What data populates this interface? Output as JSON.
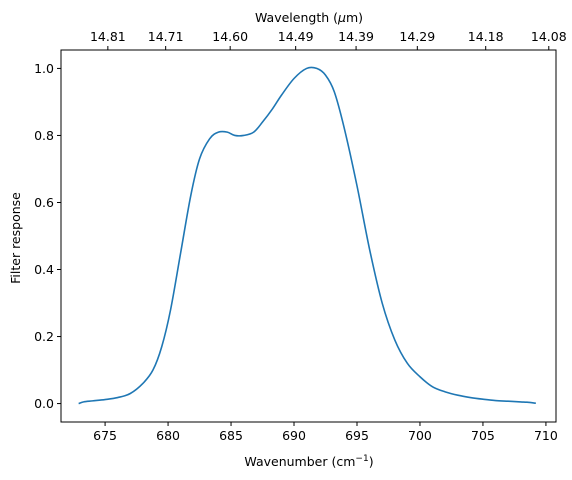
{
  "chart_data": {
    "type": "line",
    "xlabel_text": "Wavenumber (cm",
    "xlabel_sup": "−1",
    "xlabel_close": ")",
    "ylabel": "Filter response",
    "top_xlabel_text": "Wavelength (",
    "top_xlabel_greek": "μ",
    "top_xlabel_close": "m)",
    "xlim": [
      671.5,
      710.8
    ],
    "ylim": [
      -0.055,
      1.055
    ],
    "x_ticks": [
      675,
      680,
      685,
      690,
      695,
      700,
      705,
      710
    ],
    "x_tick_labels": [
      "675",
      "680",
      "685",
      "690",
      "695",
      "700",
      "705",
      "710"
    ],
    "y_ticks": [
      0.0,
      0.2,
      0.4,
      0.6,
      0.8,
      1.0
    ],
    "y_tick_labels": [
      "0.0",
      "0.2",
      "0.4",
      "0.6",
      "0.8",
      "1.0"
    ],
    "top_ticks": [
      14.81,
      14.71,
      14.6,
      14.49,
      14.39,
      14.29,
      14.18,
      14.08
    ],
    "top_tick_labels": [
      "14.81",
      "14.71",
      "14.60",
      "14.49",
      "14.39",
      "14.29",
      "14.18",
      "14.08"
    ],
    "line_color": "#1f77b4",
    "series": [
      {
        "x": [
          672.9,
          673.3,
          674.0,
          675.0,
          676.0,
          677.0,
          678.0,
          678.8,
          679.5,
          680.2,
          681.0,
          681.8,
          682.5,
          683.3,
          684.0,
          684.7,
          685.3,
          686.0,
          686.8,
          687.5,
          688.3,
          689.0,
          690.0,
          691.0,
          691.8,
          692.5,
          693.2,
          694.0,
          695.0,
          696.0,
          697.0,
          698.0,
          699.0,
          700.0,
          701.0,
          702.0,
          703.0,
          704.0,
          705.0,
          706.0,
          707.0,
          708.0,
          708.5,
          709.2
        ],
        "y": [
          0.0,
          0.005,
          0.008,
          0.012,
          0.018,
          0.03,
          0.06,
          0.1,
          0.17,
          0.28,
          0.45,
          0.62,
          0.73,
          0.79,
          0.81,
          0.81,
          0.8,
          0.8,
          0.81,
          0.84,
          0.88,
          0.92,
          0.97,
          1.0,
          1.0,
          0.98,
          0.93,
          0.82,
          0.65,
          0.46,
          0.3,
          0.19,
          0.12,
          0.08,
          0.05,
          0.035,
          0.025,
          0.018,
          0.013,
          0.009,
          0.007,
          0.005,
          0.004,
          0.001
        ]
      }
    ]
  }
}
